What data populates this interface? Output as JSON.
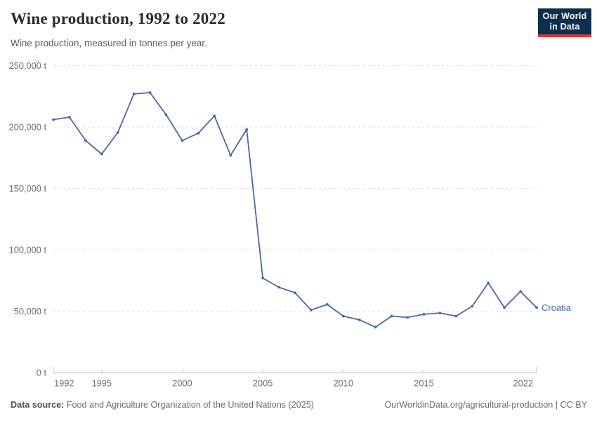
{
  "header": {
    "title": "Wine production, 1992 to 2022",
    "subtitle": "Wine production, measured in tonnes per year.",
    "logo": {
      "line1": "Our World",
      "line2": "in Data"
    }
  },
  "chart_data": {
    "type": "line",
    "title": "Wine production, 1992 to 2022",
    "subtitle": "Wine production, measured in tonnes per year.",
    "unit": "tonnes per year",
    "entity": "Croatia",
    "legend": "end-of-line-label",
    "grid": "horizontal-dashed",
    "xlim": [
      1992,
      2022
    ],
    "ylim": [
      0,
      250000
    ],
    "x": [
      1992,
      1993,
      1994,
      1995,
      1996,
      1997,
      1998,
      1999,
      2000,
      2001,
      2002,
      2003,
      2004,
      2005,
      2006,
      2007,
      2008,
      2009,
      2010,
      2011,
      2012,
      2013,
      2014,
      2015,
      2016,
      2017,
      2018,
      2019,
      2020,
      2021,
      2022
    ],
    "series": [
      {
        "name": "Croatia",
        "color": "#4d689e",
        "values": [
          206000,
          208000,
          189000,
          178000,
          195500,
          227000,
          228000,
          210000,
          189000,
          195000,
          209000,
          177000,
          198000,
          77000,
          69500,
          65000,
          51000,
          55500,
          46000,
          43000,
          37000,
          46000,
          45000,
          47500,
          48500,
          46000,
          54000,
          73000,
          53000,
          66000,
          53000
        ]
      }
    ],
    "y_ticks": [
      {
        "value": 0,
        "label": "0 t"
      },
      {
        "value": 50000,
        "label": "50,000 t"
      },
      {
        "value": 100000,
        "label": "100,000 t"
      },
      {
        "value": 150000,
        "label": "150,000 t"
      },
      {
        "value": 200000,
        "label": "200,000 t"
      },
      {
        "value": 250000,
        "label": "250,000 t"
      }
    ],
    "x_ticks": [
      {
        "value": 1992,
        "label": "1992"
      },
      {
        "value": 1995,
        "label": "1995"
      },
      {
        "value": 2000,
        "label": "2000"
      },
      {
        "value": 2005,
        "label": "2005"
      },
      {
        "value": 2010,
        "label": "2010"
      },
      {
        "value": 2015,
        "label": "2015"
      },
      {
        "value": 2022,
        "label": "2022"
      }
    ]
  },
  "footer": {
    "source_label": "Data source:",
    "source_text": "Food and Agriculture Organization of the United Nations (2025)",
    "credit": "OurWorldinData.org/agricultural-production | CC BY"
  },
  "colors": {
    "line": "#4d689e",
    "logo-bg": "#0f2e4e",
    "logo-accent": "#d93a37",
    "grid": "#dedede",
    "axis": "#c2c2c2",
    "tick-label": "#6e6e6e",
    "title": "#2b2b2b",
    "subtitle": "#5b5b5b",
    "footer-text": "#6b6b6b"
  }
}
